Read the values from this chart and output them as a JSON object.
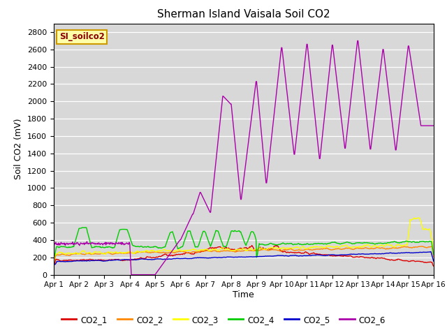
{
  "title": "Sherman Island Vaisala Soil CO2",
  "ylabel": "Soil CO2 (mV)",
  "xlabel": "Time",
  "legend_label": "SI_soilco2",
  "series_labels": [
    "CO2_1",
    "CO2_2",
    "CO2_3",
    "CO2_4",
    "CO2_5",
    "CO2_6"
  ],
  "series_colors": [
    "#dd0000",
    "#ff8800",
    "#ffff00",
    "#00cc00",
    "#0000cc",
    "#aa00aa"
  ],
  "xlim": [
    0,
    15
  ],
  "ylim": [
    0,
    2900
  ],
  "yticks": [
    0,
    200,
    400,
    600,
    800,
    1000,
    1200,
    1400,
    1600,
    1800,
    2000,
    2200,
    2400,
    2600,
    2800
  ],
  "xtick_labels": [
    "Apr 1",
    "Apr 2",
    "Apr 3",
    "Apr 4",
    "Apr 5",
    "Apr 6",
    "Apr 7",
    "Apr 8",
    "Apr 9",
    "Apr 10",
    "Apr 11",
    "Apr 12",
    "Apr 13",
    "Apr 14",
    "Apr 15",
    "Apr 16"
  ],
  "bg_color": "#d8d8d8",
  "linewidth": 1.0
}
